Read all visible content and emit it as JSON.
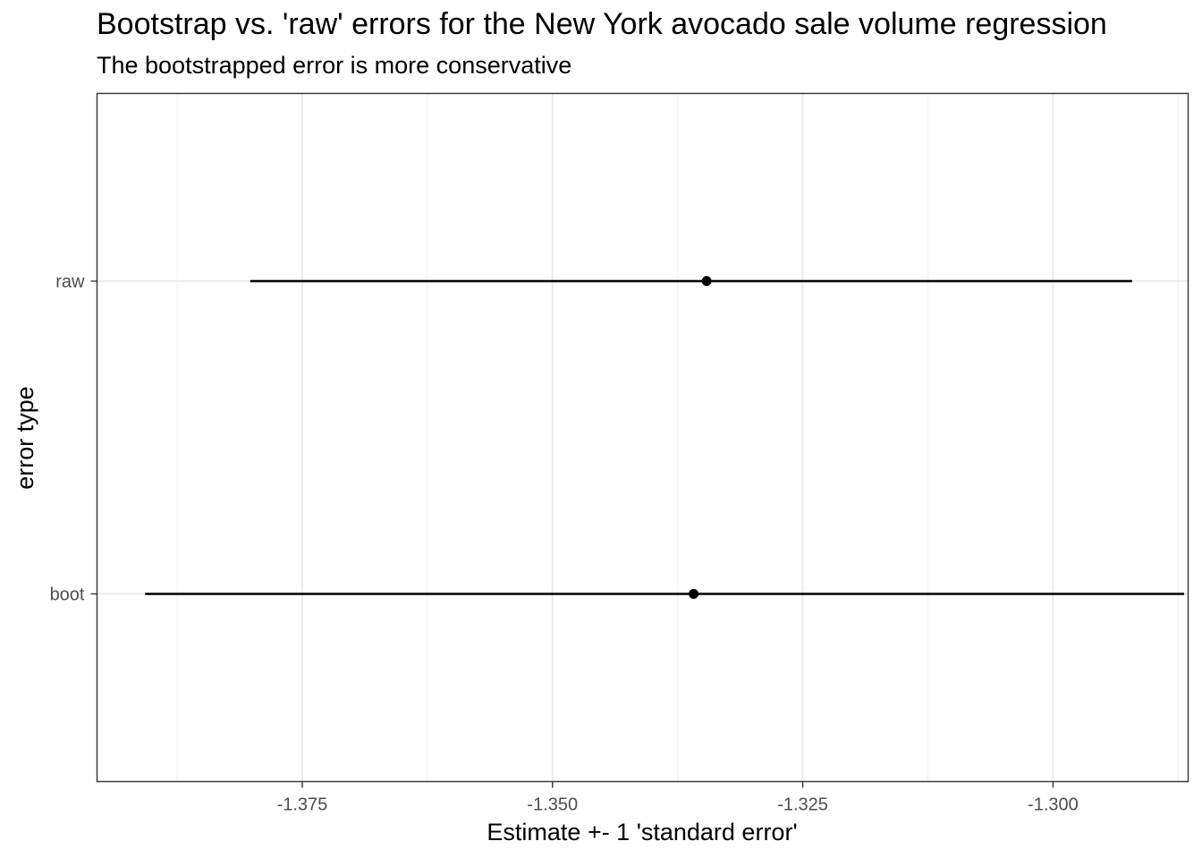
{
  "chart_data": {
    "type": "scatter",
    "title": "Bootstrap vs. 'raw' errors for the New York avocado sale volume regression",
    "subtitle": "The bootstrapped error is more conservative",
    "xlabel": "Estimate +- 1 'standard error'",
    "ylabel": "error type",
    "xlim": [
      -1.3955,
      -1.2865
    ],
    "x_ticks": [
      -1.375,
      -1.35,
      -1.325,
      -1.3
    ],
    "x_tick_labels": [
      "-1.375",
      "-1.350",
      "-1.325",
      "-1.300"
    ],
    "categories": [
      "boot",
      "raw"
    ],
    "points": [
      {
        "category": "boot",
        "estimate": -1.3359,
        "low": -1.3907,
        "high": -1.2869
      },
      {
        "category": "raw",
        "estimate": -1.3346,
        "low": -1.3802,
        "high": -1.2921
      }
    ],
    "grid": true,
    "legend": "none",
    "colors": {
      "mark": "#000000",
      "grid_major": "#ebebeb",
      "grid_minor": "#f2f2f2",
      "panel_border": "#333333",
      "tick_text": "#4d4d4d"
    }
  }
}
